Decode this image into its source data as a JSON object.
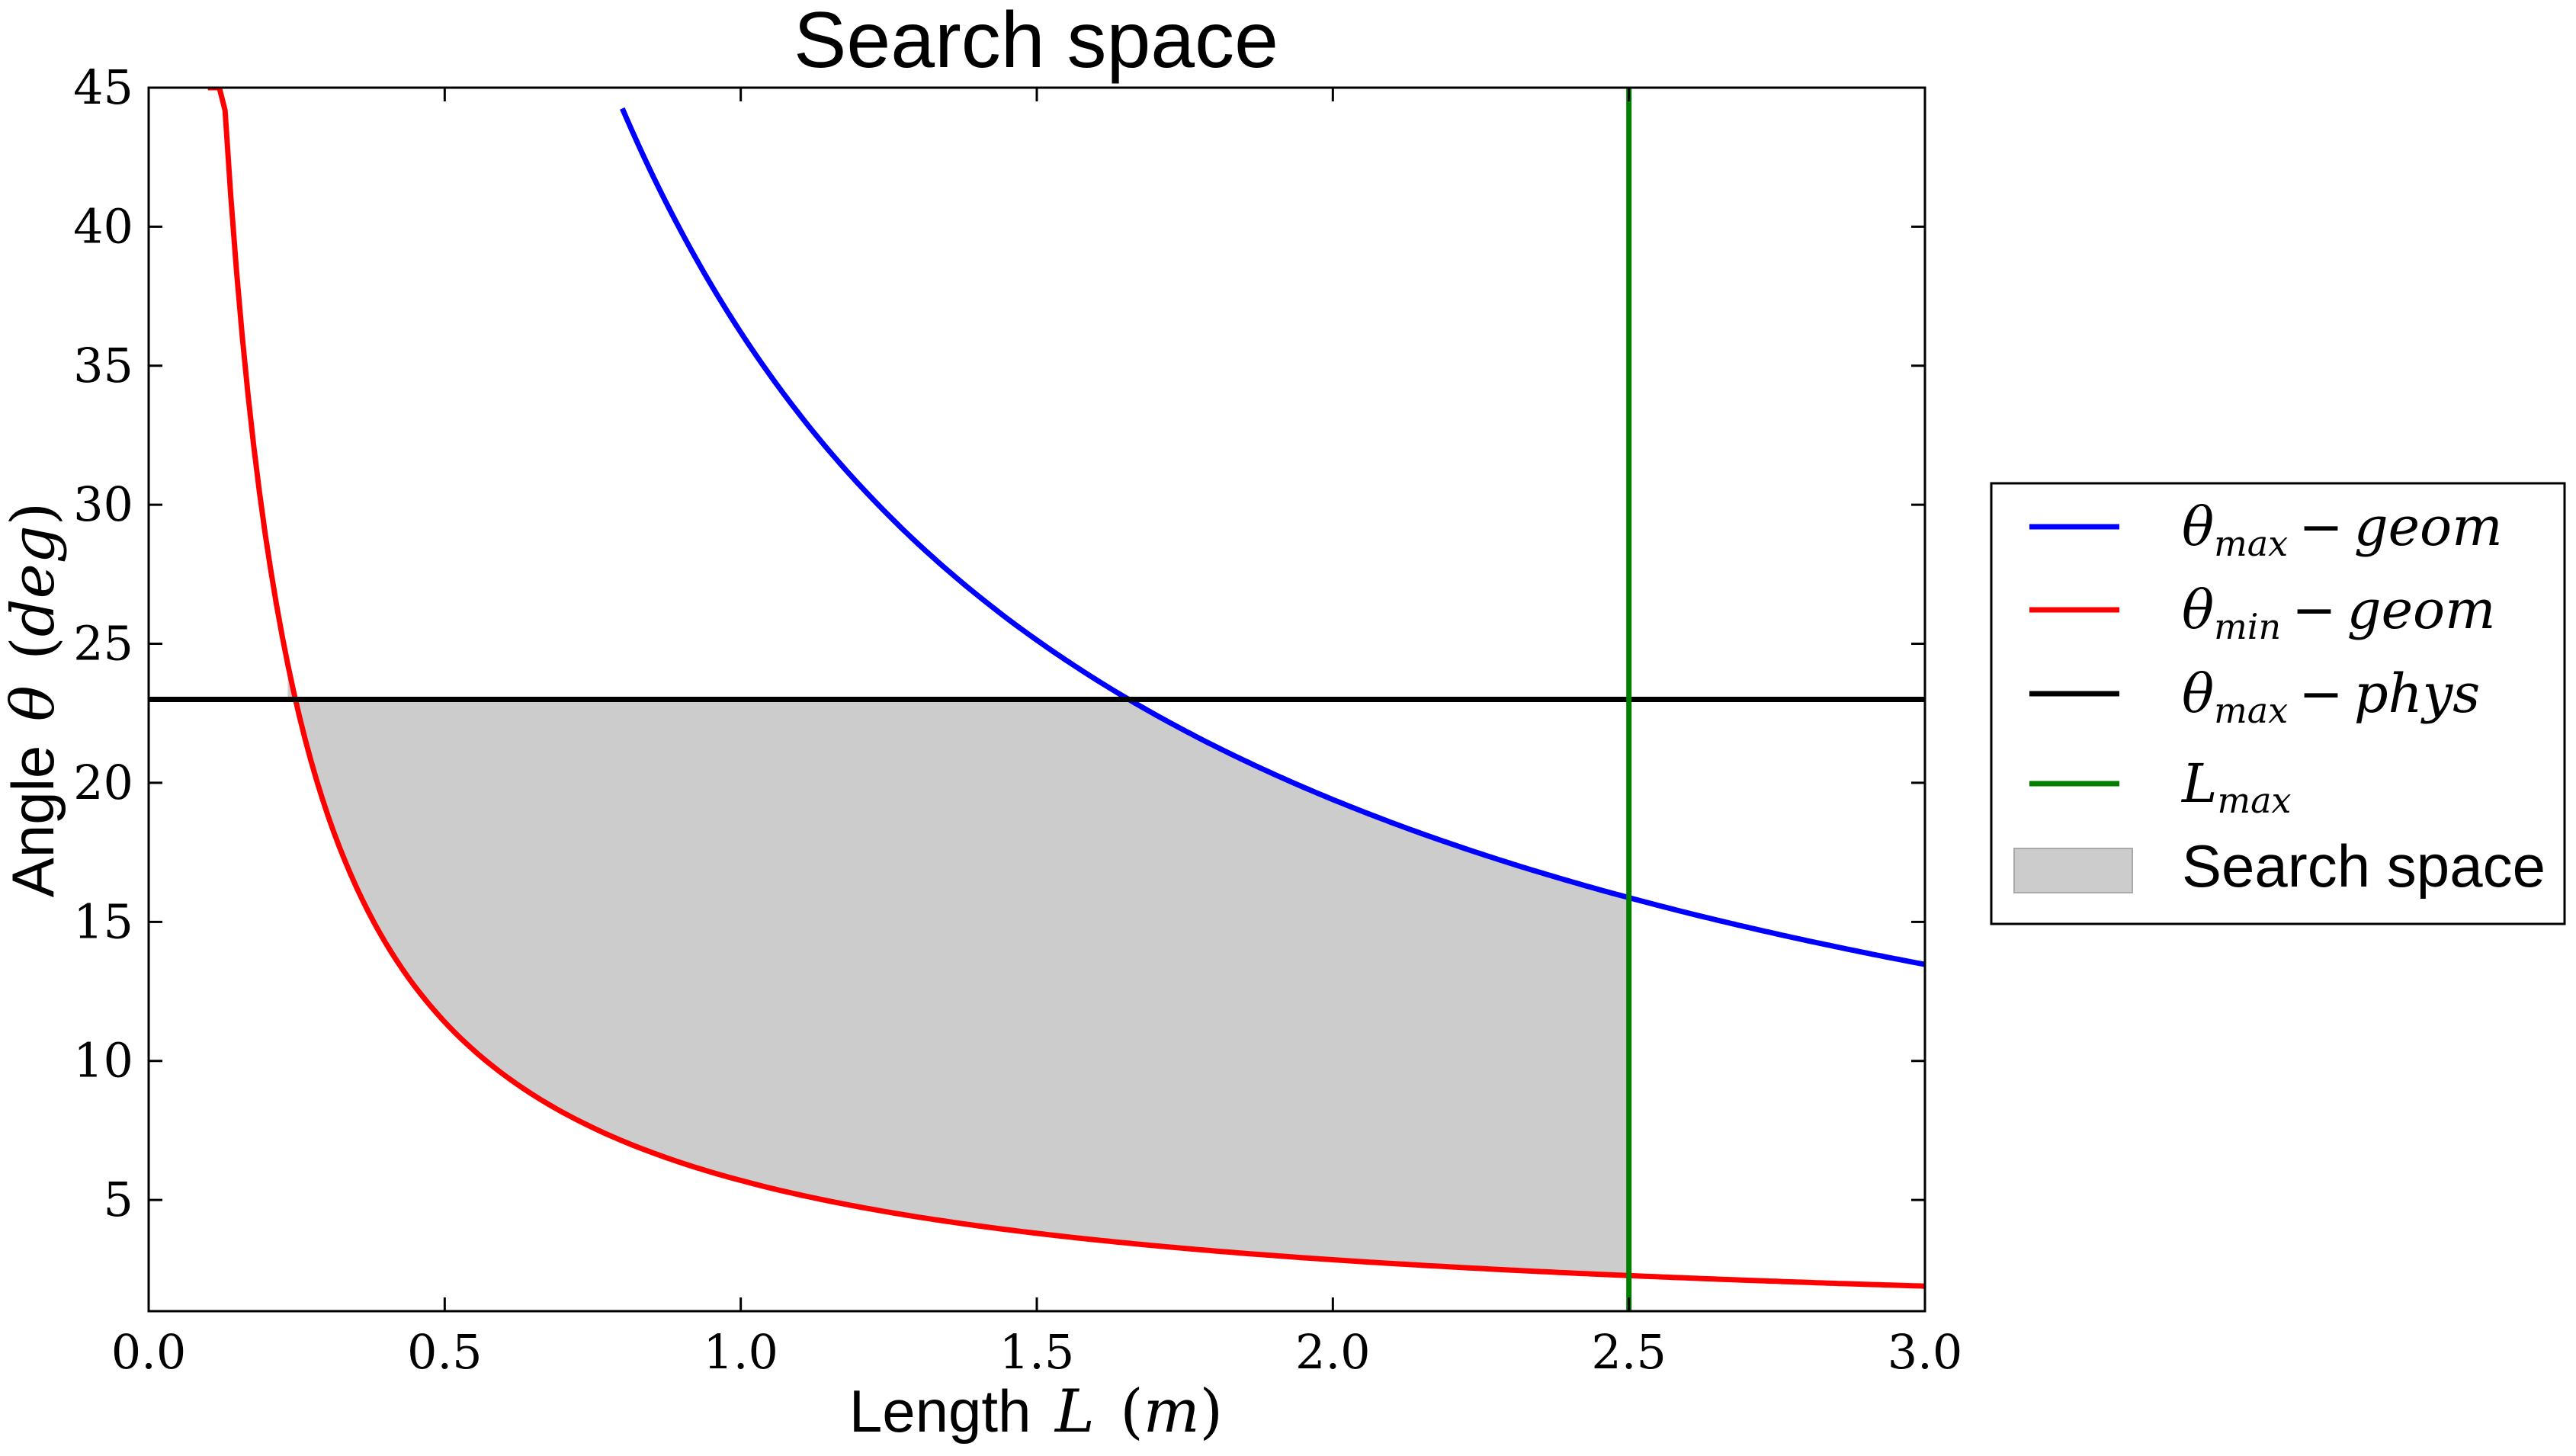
{
  "chart_data": {
    "type": "line",
    "title": "Search space",
    "xlabel": {
      "text": "Length",
      "symbol": "L",
      "unit": "m"
    },
    "ylabel": {
      "text": "Angle",
      "symbol": "θ",
      "unit": "deg"
    },
    "xlim": [
      0.0,
      3.0
    ],
    "ylim": [
      1.0,
      45.0
    ],
    "xticks": [
      0.0,
      0.5,
      1.0,
      1.5,
      2.0,
      2.5,
      3.0
    ],
    "xtick_labels": [
      "0.0",
      "0.5",
      "1.0",
      "1.5",
      "2.0",
      "2.5",
      "3.0"
    ],
    "yticks": [
      5,
      10,
      15,
      20,
      25,
      30,
      35,
      40,
      45
    ],
    "ytick_labels": [
      "5",
      "10",
      "15",
      "20",
      "25",
      "30",
      "35",
      "40",
      "45"
    ],
    "grid": false,
    "legend_position": "right-outside",
    "series": [
      {
        "id": "theta-max-geom",
        "name": "θ_max − geom",
        "legend": {
          "symbol": "θ",
          "sub": "max",
          "rest": "geom"
        },
        "color": "#0000ff",
        "x": [
          0.8,
          0.9,
          1.0,
          1.1,
          1.2,
          1.3,
          1.4,
          1.5,
          1.6,
          1.7,
          1.8,
          1.9,
          2.0,
          2.1,
          2.2,
          2.3,
          2.4,
          2.5,
          2.6,
          2.7,
          2.8,
          2.9,
          3.0
        ],
        "y": [
          45.0,
          40.0,
          36.2,
          33.0,
          30.4,
          28.2,
          26.3,
          24.7,
          23.3,
          22.0,
          20.9,
          19.9,
          18.9,
          18.1,
          17.3,
          16.6,
          16.0,
          15.4,
          14.8,
          14.3,
          13.8,
          13.4,
          14.9
        ]
      },
      {
        "id": "theta-min-geom",
        "name": "θ_min − geom",
        "legend": {
          "symbol": "θ",
          "sub": "min",
          "rest": "geom"
        },
        "color": "#ff0000",
        "x": [
          0.1,
          0.15,
          0.2,
          0.25,
          0.3,
          0.4,
          0.5,
          0.6,
          0.7,
          0.8,
          1.0,
          1.2,
          1.4,
          1.6,
          1.8,
          2.0,
          2.2,
          2.4,
          2.6,
          2.8,
          3.0
        ],
        "y": [
          45.0,
          33.0,
          26.4,
          21.5,
          18.5,
          13.8,
          11.2,
          9.4,
          8.1,
          7.1,
          5.7,
          4.8,
          4.1,
          3.6,
          3.2,
          2.9,
          2.6,
          2.4,
          2.2,
          2.05,
          1.9
        ]
      },
      {
        "id": "theta-max-phys",
        "name": "θ_max − phys",
        "legend": {
          "symbol": "θ",
          "sub": "max",
          "rest": "phys"
        },
        "color": "#000000",
        "x": [
          0.0,
          3.0
        ],
        "y": [
          23.0,
          23.0
        ]
      },
      {
        "id": "l-max",
        "name": "L_max",
        "legend": {
          "symbol": "L",
          "sub": "max",
          "rest": ""
        },
        "color": "#007f00",
        "x": [
          2.5,
          2.5
        ],
        "y": [
          1.0,
          45.0
        ]
      }
    ],
    "fill": {
      "name": "Search space",
      "color": "#cccccc",
      "x_range": [
        0.235,
        2.5
      ],
      "upper": "min(θ_max − phys, θ_max − geom)",
      "lower": "θ_min − geom"
    }
  }
}
